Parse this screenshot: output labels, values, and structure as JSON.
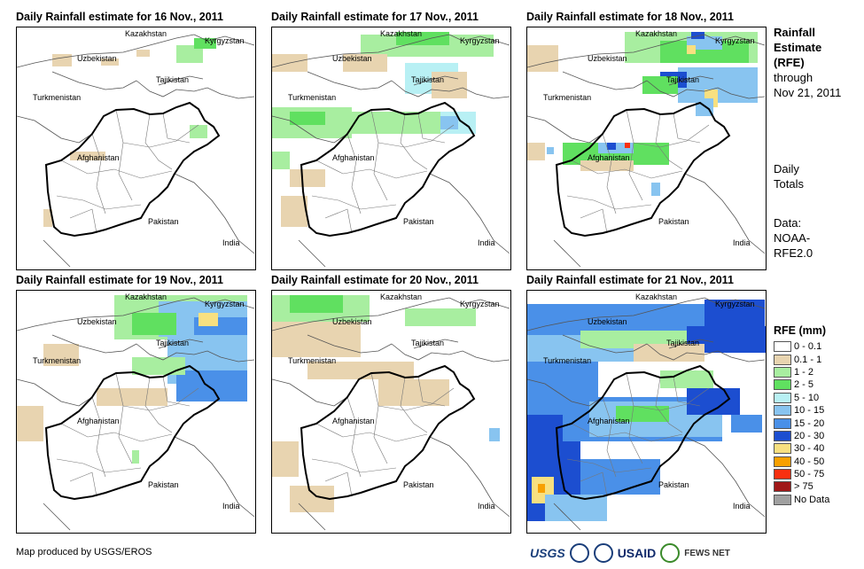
{
  "panels": [
    {
      "title": "Daily Rainfall estimate for 16 Nov., 2011",
      "day": 16
    },
    {
      "title": "Daily Rainfall estimate for 17 Nov., 2011",
      "day": 17
    },
    {
      "title": "Daily Rainfall estimate for 18 Nov., 2011",
      "day": 18
    },
    {
      "title": "Daily Rainfall estimate for 19 Nov., 2011",
      "day": 19
    },
    {
      "title": "Daily Rainfall estimate for 20 Nov., 2011",
      "day": 20
    },
    {
      "title": "Daily Rainfall estimate for 21 Nov., 2011",
      "day": 21
    }
  ],
  "country_labels": {
    "kazakhstan": "Kazakhstan",
    "kyrgyzstan": "Kyrgyzstan",
    "uzbekistan": "Uzbekistan",
    "tajikistan": "Tajikistan",
    "turkmenistan": "Turkmenistan",
    "afghanistan": "Afghanistan",
    "pakistan": "Pakistan",
    "india": "India"
  },
  "side_info": {
    "line1": "Rainfall",
    "line2": "Estimate",
    "line3": "(RFE)",
    "line4": "through",
    "line5": "Nov 21, 2011",
    "totals1": "Daily",
    "totals2": "Totals",
    "data1": "Data:",
    "data2": "NOAA-",
    "data3": "RFE2.0"
  },
  "legend": {
    "title": "RFE (mm)",
    "items": [
      {
        "label": "0 - 0.1",
        "color": "#ffffff"
      },
      {
        "label": "0.1 - 1",
        "color": "#e8d4b0"
      },
      {
        "label": "1 - 2",
        "color": "#a8eea0"
      },
      {
        "label": "2 - 5",
        "color": "#60e060"
      },
      {
        "label": "5 - 10",
        "color": "#b8f0f4"
      },
      {
        "label": "10 - 15",
        "color": "#88c4f0"
      },
      {
        "label": "15 - 20",
        "color": "#4a90e8"
      },
      {
        "label": "20 - 30",
        "color": "#1c4ed0"
      },
      {
        "label": "30 - 40",
        "color": "#f8e080"
      },
      {
        "label": "40 - 50",
        "color": "#f8a000"
      },
      {
        "label": "50 - 75",
        "color": "#f83010"
      },
      {
        "label": "> 75",
        "color": "#a01818"
      },
      {
        "label": "No Data",
        "color": "#a0a0a0"
      }
    ]
  },
  "footer": {
    "credit": "Map produced by USGS/EROS",
    "logo_usgs": "USGS",
    "logo_usaid": "USAID",
    "logo_fews": "FEWS NET"
  }
}
